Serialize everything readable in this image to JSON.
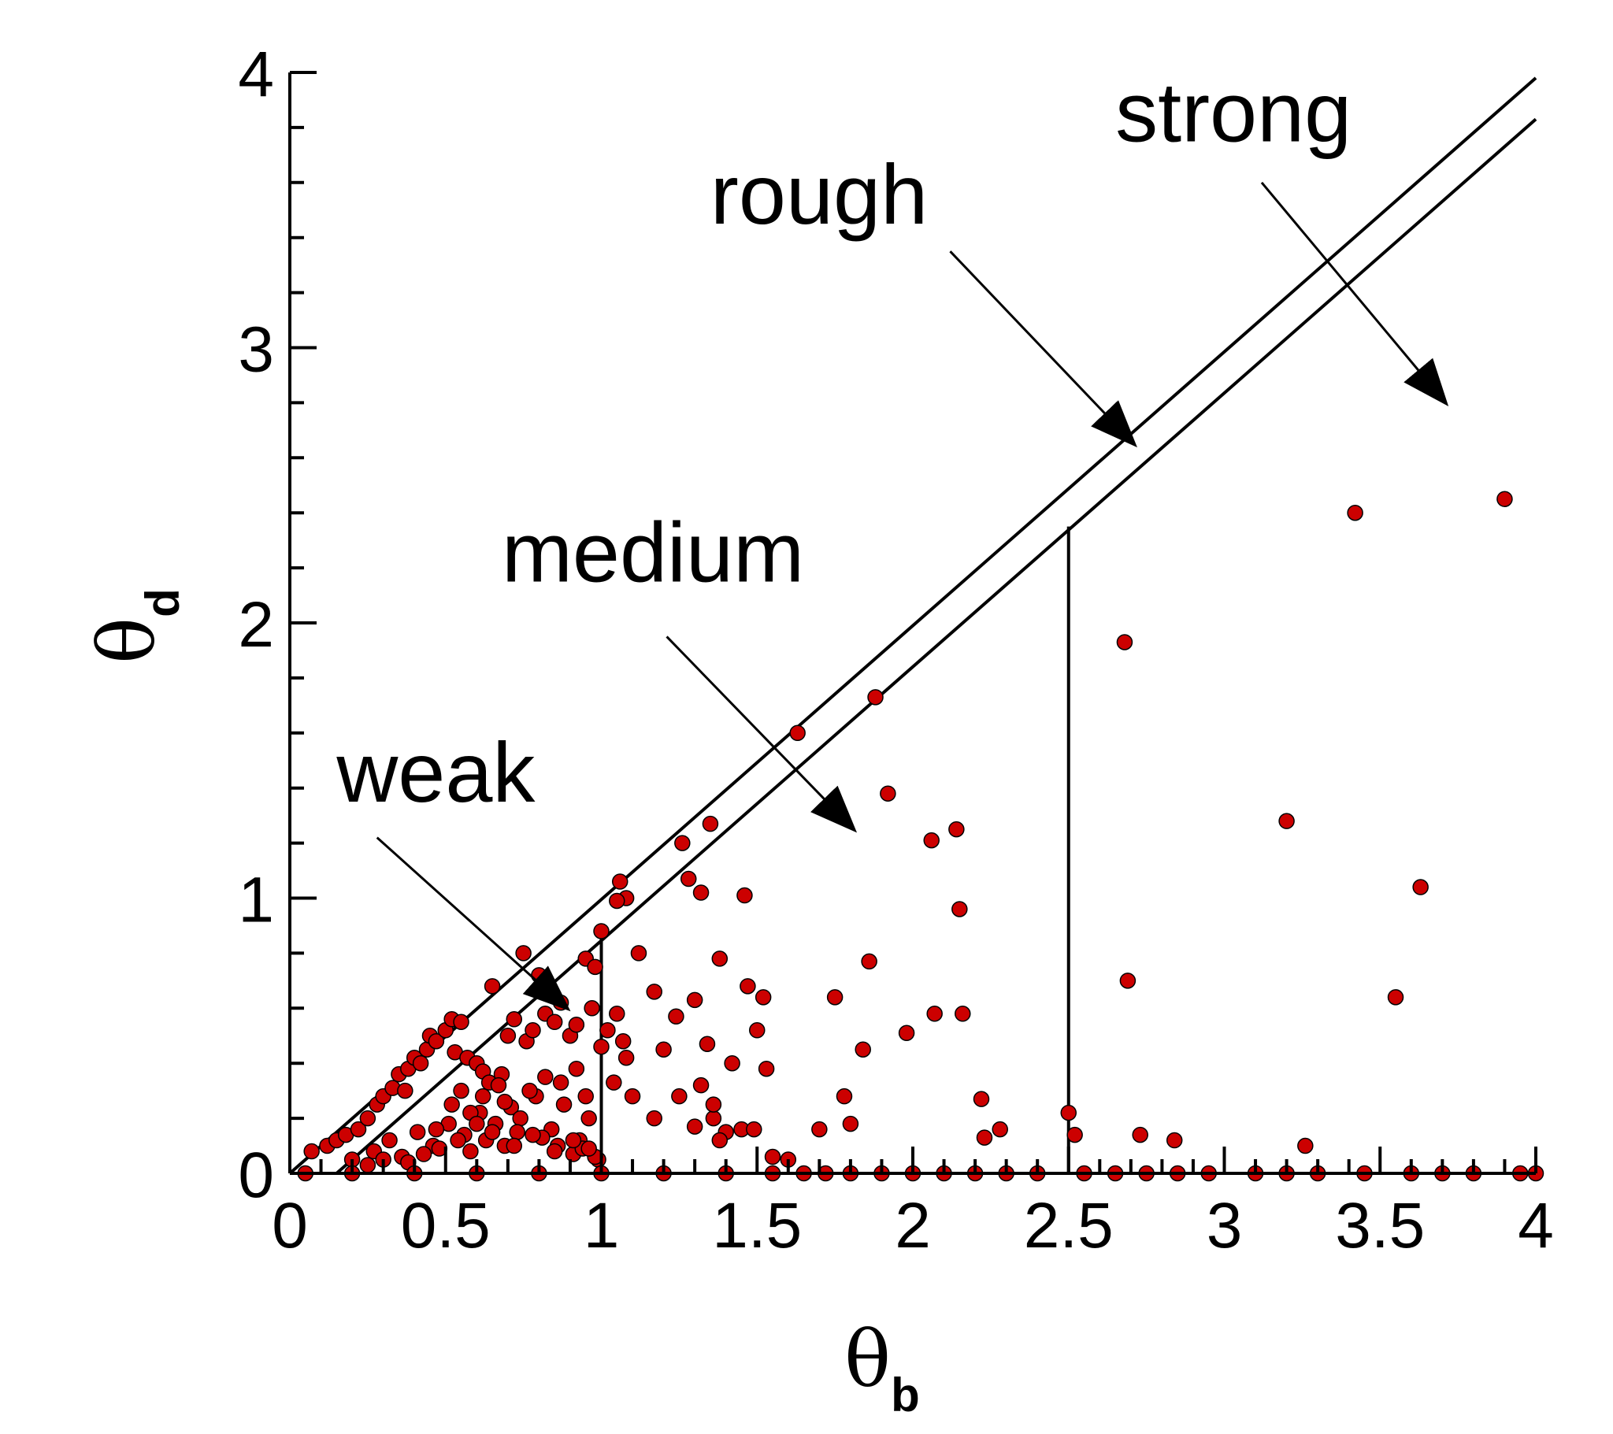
{
  "chart_data": {
    "type": "scatter",
    "title": "",
    "xlabel": {
      "symbol": "θ",
      "subscript": "b"
    },
    "ylabel": {
      "symbol": "θ",
      "subscript": "d"
    },
    "xlim": [
      0,
      4
    ],
    "ylim": [
      0,
      4
    ],
    "x_ticks": [
      "0",
      "0.5",
      "1",
      "1.5",
      "2",
      "2.5",
      "3",
      "3.5",
      "4"
    ],
    "y_ticks": [
      "0",
      "1",
      "2",
      "3",
      "4"
    ],
    "colors": {
      "points": "#cc0000",
      "lines": "#000000"
    },
    "annotations": [
      {
        "text": "weak",
        "label_at": [
          0.15,
          1.35
        ],
        "arrow_from": [
          0.28,
          1.22
        ],
        "arrow_to": [
          0.89,
          0.6
        ]
      },
      {
        "text": "medium",
        "label_at": [
          0.68,
          2.15
        ],
        "arrow_from": [
          1.21,
          1.95
        ],
        "arrow_to": [
          1.81,
          1.25
        ]
      },
      {
        "text": "rough",
        "label_at": [
          1.35,
          3.45
        ],
        "arrow_from": [
          2.12,
          3.35
        ],
        "arrow_to": [
          2.71,
          2.65
        ]
      },
      {
        "text": "strong",
        "label_at": [
          2.65,
          3.75
        ],
        "arrow_from": [
          3.12,
          3.6
        ],
        "arrow_to": [
          3.71,
          2.8
        ]
      }
    ],
    "boundaries": [
      {
        "kind": "diagonal",
        "x0": 0.0,
        "y0": 0.0,
        "x1": 4.0,
        "y1": 3.98
      },
      {
        "kind": "diagonal",
        "x0": 0.15,
        "y0": 0.0,
        "x1": 4.0,
        "y1": 3.83
      },
      {
        "kind": "vertical",
        "x": 1.0,
        "y0": 0.0,
        "y1": 0.87
      },
      {
        "kind": "vertical",
        "x": 2.5,
        "y0": 0.0,
        "y1": 2.35
      }
    ],
    "x": [
      0.07,
      0.12,
      0.15,
      0.18,
      0.22,
      0.25,
      0.28,
      0.3,
      0.33,
      0.35,
      0.37,
      0.38,
      0.4,
      0.42,
      0.44,
      0.45,
      0.47,
      0.5,
      0.52,
      0.53,
      0.55,
      0.57,
      0.6,
      0.62,
      0.64,
      0.65,
      0.68,
      0.7,
      0.72,
      0.75,
      0.76,
      0.78,
      0.8,
      0.82,
      0.85,
      0.87,
      0.9,
      0.92,
      0.95,
      0.97,
      0.2,
      0.27,
      0.32,
      0.36,
      0.41,
      0.46,
      0.51,
      0.56,
      0.61,
      0.66,
      0.71,
      0.74,
      0.79,
      0.84,
      0.88,
      0.93,
      0.96,
      0.99,
      0.25,
      0.3,
      0.38,
      0.43,
      0.48,
      0.58,
      0.63,
      0.69,
      0.73,
      0.81,
      0.86,
      0.91,
      0.94,
      0.98,
      0.52,
      0.55,
      0.58,
      0.62,
      0.67,
      0.69,
      0.77,
      0.82,
      0.87,
      0.92,
      0.95,
      1.0,
      1.04,
      0.47,
      0.54,
      0.6,
      0.65,
      0.72,
      0.78,
      0.85,
      0.91,
      0.96,
      1.02,
      1.05,
      1.08,
      1.12,
      1.17,
      1.2,
      1.24,
      1.25,
      1.26,
      1.28,
      1.3,
      1.32,
      1.34,
      1.35,
      1.36,
      1.38,
      1.4,
      1.42,
      1.45,
      1.47,
      1.49,
      1.5,
      1.52,
      1.55,
      1.06,
      1.08,
      1.1,
      1.17,
      1.3,
      1.32,
      1.36,
      1.38,
      1.46,
      1.05,
      1.07,
      1.0,
      0.98,
      1.63,
      1.7,
      1.75,
      1.8,
      1.84,
      1.86,
      1.88,
      1.92,
      1.98,
      2.06,
      2.07,
      2.14,
      2.15,
      2.16,
      2.22,
      2.23,
      2.28,
      1.78,
      1.6,
      1.53,
      2.68,
      2.69,
      2.5,
      2.52,
      2.73,
      2.84,
      3.26,
      3.2,
      3.42,
      3.55,
      3.63,
      3.9,
      0.05,
      0.2,
      0.4,
      0.6,
      0.8,
      1.0,
      1.2,
      1.4,
      1.55,
      1.65,
      1.72,
      1.8,
      1.9,
      2.0,
      2.1,
      2.2,
      2.3,
      2.4,
      2.55,
      2.65,
      2.75,
      2.85,
      2.95,
      3.1,
      3.2,
      3.3,
      3.45,
      3.6,
      3.7,
      3.8,
      3.95,
      4.0
    ],
    "y": [
      0.08,
      0.1,
      0.12,
      0.14,
      0.16,
      0.2,
      0.25,
      0.28,
      0.31,
      0.36,
      0.3,
      0.38,
      0.42,
      0.4,
      0.45,
      0.5,
      0.48,
      0.52,
      0.56,
      0.44,
      0.55,
      0.42,
      0.4,
      0.37,
      0.33,
      0.68,
      0.36,
      0.5,
      0.56,
      0.8,
      0.48,
      0.52,
      0.72,
      0.58,
      0.55,
      0.62,
      0.5,
      0.54,
      0.78,
      0.6,
      0.05,
      0.08,
      0.12,
      0.06,
      0.15,
      0.1,
      0.18,
      0.14,
      0.22,
      0.18,
      0.24,
      0.2,
      0.28,
      0.16,
      0.25,
      0.12,
      0.2,
      0.05,
      0.03,
      0.05,
      0.04,
      0.07,
      0.09,
      0.08,
      0.12,
      0.1,
      0.15,
      0.13,
      0.1,
      0.07,
      0.09,
      0.06,
      0.25,
      0.3,
      0.22,
      0.28,
      0.32,
      0.26,
      0.3,
      0.35,
      0.33,
      0.38,
      0.28,
      0.46,
      0.33,
      0.16,
      0.12,
      0.18,
      0.15,
      0.1,
      0.14,
      0.08,
      0.12,
      0.09,
      0.52,
      0.58,
      0.42,
      0.8,
      0.66,
      0.45,
      0.57,
      0.28,
      1.2,
      1.07,
      0.63,
      1.02,
      0.47,
      1.27,
      0.2,
      0.78,
      0.15,
      0.4,
      0.16,
      0.68,
      0.16,
      0.52,
      0.64,
      0.06,
      1.06,
      1.0,
      0.28,
      0.2,
      0.17,
      0.32,
      0.25,
      0.12,
      1.01,
      0.99,
      0.48,
      0.88,
      0.75,
      1.6,
      0.16,
      0.64,
      0.18,
      0.45,
      0.77,
      1.73,
      1.38,
      0.51,
      1.21,
      0.58,
      1.25,
      0.96,
      0.58,
      0.27,
      0.13,
      0.16,
      0.28,
      0.05,
      0.38,
      1.93,
      0.7,
      0.22,
      0.14,
      0.14,
      0.12,
      0.1,
      1.28,
      2.4,
      0.64,
      1.04,
      2.45,
      0.0,
      0.0,
      0.0,
      0.0,
      0.0,
      0.0,
      0.0,
      0.0,
      0.0,
      0.0,
      0.0,
      0.0,
      0.0,
      0.0,
      0.0,
      0.0,
      0.0,
      0.0,
      0.0,
      0.0,
      0.0,
      0.0,
      0.0,
      0.0,
      0.0,
      0.0,
      0.0,
      0.0,
      0.0,
      0.0,
      0.0,
      0.0
    ]
  }
}
